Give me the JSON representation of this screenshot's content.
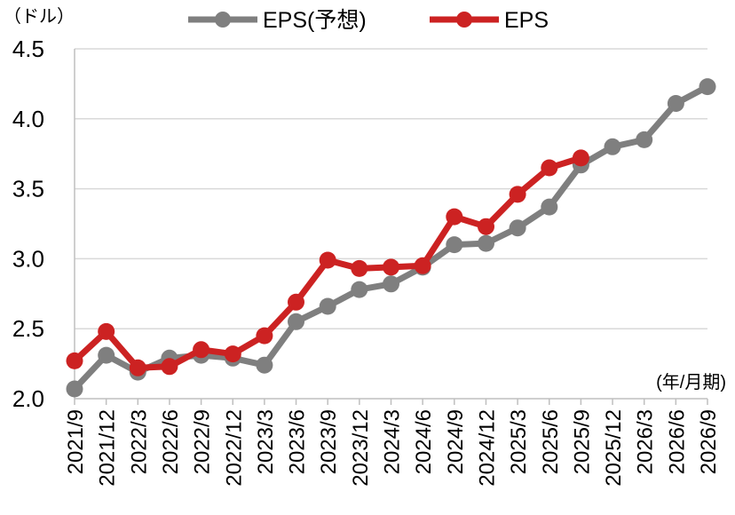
{
  "chart_data": {
    "type": "line",
    "y_unit_label": "（ドル）",
    "x_unit_label": "(年/月期)",
    "categories": [
      "2021/9",
      "2021/12",
      "2022/3",
      "2022/6",
      "2022/9",
      "2022/12",
      "2023/3",
      "2023/6",
      "2023/9",
      "2023/12",
      "2024/3",
      "2024/6",
      "2024/9",
      "2024/12",
      "2025/3",
      "2025/6",
      "2025/9",
      "2025/12",
      "2026/3",
      "2026/6",
      "2026/9"
    ],
    "y_ticks": [
      "2.0",
      "2.5",
      "3.0",
      "3.5",
      "4.0",
      "4.5"
    ],
    "ylim": [
      2.0,
      4.5
    ],
    "grid": true,
    "legend_position": "top-center",
    "series": [
      {
        "name": "EPS(予想)",
        "color": "#7f7f7f",
        "values": [
          2.07,
          2.31,
          2.19,
          2.29,
          2.31,
          2.29,
          2.24,
          2.55,
          2.66,
          2.78,
          2.82,
          2.94,
          3.1,
          3.11,
          3.22,
          3.37,
          3.67,
          3.8,
          3.85,
          4.11,
          4.23
        ]
      },
      {
        "name": "EPS",
        "color": "#cc2222",
        "values": [
          2.27,
          2.48,
          2.22,
          2.23,
          2.35,
          2.32,
          2.45,
          2.69,
          2.99,
          2.93,
          2.94,
          2.95,
          3.3,
          3.23,
          3.46,
          3.65,
          3.72,
          null,
          null,
          null,
          null
        ]
      }
    ]
  }
}
